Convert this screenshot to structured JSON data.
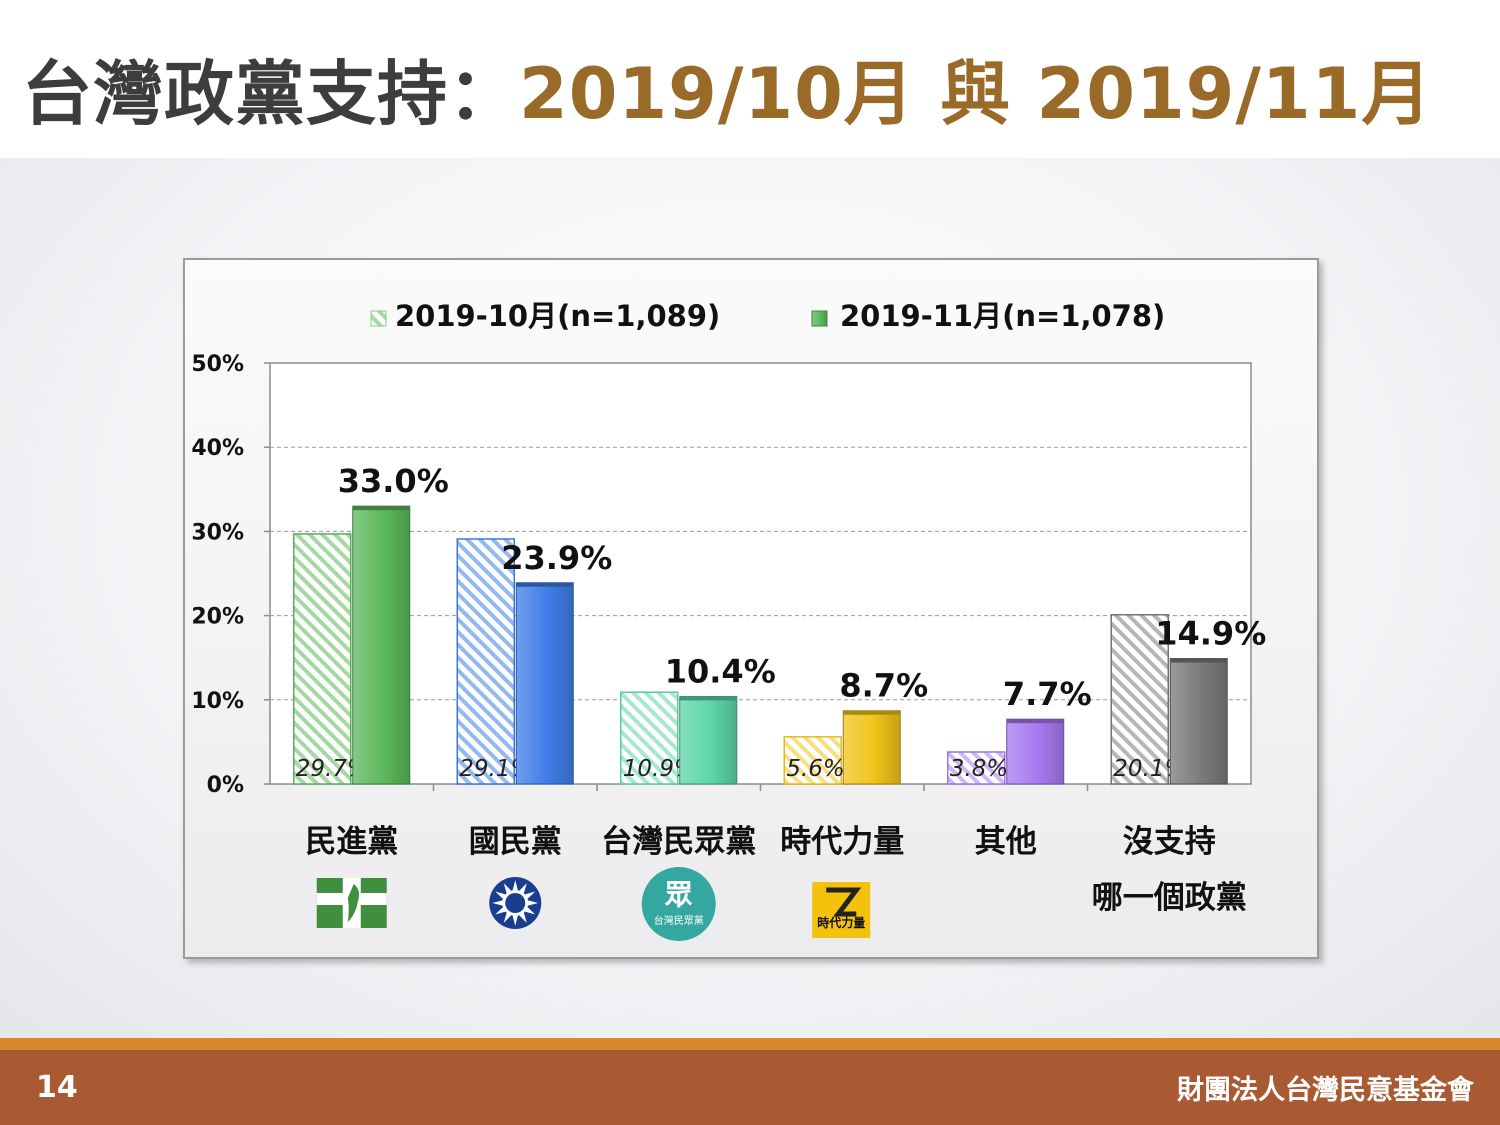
{
  "title": {
    "prefix": "台灣政黨支持：",
    "range": "2019/10月 與 2019/11月"
  },
  "footer": {
    "page_number": "14",
    "organization": "財團法人台灣民意基金會"
  },
  "colors": {
    "title_text": "#3d3d3d",
    "title_accent": "#9a6a28",
    "footer_bar": "#a95a33",
    "footer_line": "#d7892b"
  },
  "chart_data": {
    "type": "bar",
    "title": "",
    "xlabel": "",
    "ylabel": "",
    "ylim": [
      0,
      50
    ],
    "ytick_labels": [
      "0%",
      "10%",
      "20%",
      "30%",
      "40%",
      "50%"
    ],
    "grid": true,
    "legend": "top",
    "categories": [
      "民進黨",
      "國民黨",
      "台灣民眾黨",
      "時代力量",
      "其他",
      "沒支持哪一個政黨"
    ],
    "category_labels": [
      [
        "民進黨"
      ],
      [
        "國民黨"
      ],
      [
        "台灣民眾黨"
      ],
      [
        "時代力量"
      ],
      [
        "其他"
      ],
      [
        "沒支持",
        "哪一個政黨"
      ]
    ],
    "series": [
      {
        "name": "2019-10月(n=1,089)",
        "style": "hatched",
        "values": [
          29.7,
          29.1,
          10.9,
          5.6,
          3.8,
          20.1
        ],
        "labels": [
          "29.7%",
          "29.1%",
          "10.9%",
          "5.6%",
          "3.8%",
          "20.1%"
        ]
      },
      {
        "name": "2019-11月(n=1,078)",
        "style": "solid",
        "values": [
          33.0,
          23.9,
          10.4,
          8.7,
          7.7,
          14.9
        ],
        "labels": [
          "33.0%",
          "23.9%",
          "10.4%",
          "8.7%",
          "7.7%",
          "14.9%"
        ]
      }
    ],
    "category_colors": [
      "#5cb85c",
      "#3f7ee8",
      "#5ed6a8",
      "#f0c419",
      "#a77af0",
      "#7a7a7a"
    ],
    "logos": [
      {
        "category": "民進黨",
        "icon": "dpp-logo",
        "color": "#3f8f3f"
      },
      {
        "category": "國民黨",
        "icon": "kmt-logo",
        "color": "#1a3d8f"
      },
      {
        "category": "台灣民眾黨",
        "icon": "tpp-logo",
        "color": "#34a7a0",
        "text": "台灣民眾黨"
      },
      {
        "category": "時代力量",
        "icon": "npp-logo",
        "color": "#f4c20d",
        "text": "時代力量"
      }
    ]
  }
}
